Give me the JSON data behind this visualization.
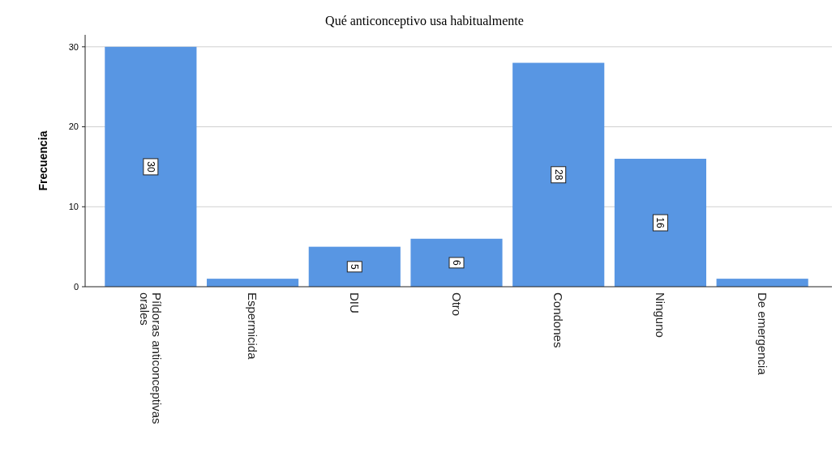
{
  "chart_data": {
    "type": "bar",
    "title": "Qué anticonceptivo usa habitualmente",
    "ylabel": "Frecuencia",
    "categories": [
      "Píldoras anticonceptivas orales",
      "Espermicida",
      "DIU",
      "Otro",
      "Condones",
      "Ninguno",
      "De emergencia"
    ],
    "values": [
      30,
      1,
      5,
      6,
      28,
      16,
      1
    ],
    "value_labels": [
      "30",
      null,
      "5",
      "6",
      "28",
      "16",
      null
    ],
    "color": "#5896e3",
    "ylim": [
      0,
      31.5
    ],
    "yticks": [
      0,
      10,
      20,
      30
    ],
    "grid": "y"
  }
}
